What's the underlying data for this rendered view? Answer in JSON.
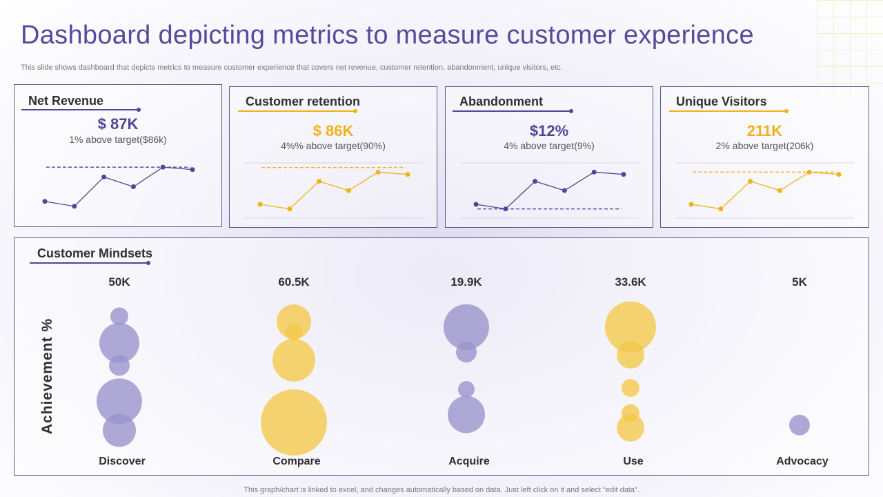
{
  "page": {
    "title": "Dashboard depicting metrics to measure customer experience",
    "subtitle": "This slide shows dashboard that depicts metrics to measure customer experience that covers net revenue, customer retention, abandonment, unique visitors, etc.",
    "footer": "This graph/chart is linked to excel,  and changes automatically based on data. Just left click on it and select “edit data”."
  },
  "colors": {
    "purple": "#4f4796",
    "gold": "#e8a916",
    "bubble_purple": "#9b94cc",
    "bubble_gold": "#f2c94c",
    "ink": "#2f2f2f"
  },
  "kpis": [
    {
      "title": "Net Revenue",
      "value": "$ 87K",
      "sub": "1% above target($86k)",
      "accent": "#4f4796"
    },
    {
      "title": "Customer retention",
      "value": "$ 86K",
      "sub": "4%% above target(90%)",
      "accent": "#f0b11b"
    },
    {
      "title": "Abandonment",
      "value": "$12%",
      "sub": "4% above target(9%)",
      "accent": "#4f4796"
    },
    {
      "title": "Unique Visitors",
      "value": "211K",
      "sub": "2% above target(206k)",
      "accent": "#f0b11b"
    }
  ],
  "mindsets": {
    "title": "Customer Mindsets",
    "axis_label": "Achievement %"
  },
  "chart_data": [
    {
      "type": "line",
      "title": "Net Revenue",
      "series": [
        {
          "values": [
            3,
            2,
            8,
            6,
            10,
            9.5
          ]
        }
      ],
      "target": 10,
      "ylim": [
        0,
        12
      ]
    },
    {
      "type": "line",
      "title": "Customer retention",
      "series": [
        {
          "values": [
            3,
            2,
            8,
            6,
            10,
            9.5
          ]
        }
      ],
      "target": 11,
      "ylim": [
        0,
        12
      ]
    },
    {
      "type": "line",
      "title": "Abandonment",
      "series": [
        {
          "values": [
            3,
            2,
            8,
            6,
            10,
            9.5
          ]
        }
      ],
      "target": 2,
      "ylim": [
        0,
        12
      ]
    },
    {
      "type": "line",
      "title": "Unique Visitors",
      "series": [
        {
          "values": [
            3,
            2,
            8,
            6,
            10,
            9.5
          ]
        }
      ],
      "target": 10,
      "ylim": [
        0,
        12
      ]
    },
    {
      "type": "scatter",
      "title": "Customer Mindsets",
      "ylabel": "Achievement %",
      "categories": [
        {
          "label": "Discover",
          "total": "50K",
          "color": "#9b94cc",
          "bubbles": [
            {
              "y": 92,
              "size": 13
            },
            {
              "y": 72,
              "size": 29
            },
            {
              "y": 55,
              "size": 15
            },
            {
              "y": 28,
              "size": 33
            },
            {
              "y": 6,
              "size": 24
            }
          ]
        },
        {
          "label": "Compare",
          "total": "60.5K",
          "color": "#f2c94c",
          "bubbles": [
            {
              "y": 88,
              "size": 25
            },
            {
              "y": 80,
              "size": 12
            },
            {
              "y": 59,
              "size": 31
            },
            {
              "y": 12,
              "size": 48
            }
          ]
        },
        {
          "label": "Acquire",
          "total": "19.9K",
          "color": "#9b94cc",
          "bubbles": [
            {
              "y": 84,
              "size": 33
            },
            {
              "y": 65,
              "size": 15
            },
            {
              "y": 37,
              "size": 12
            },
            {
              "y": 18,
              "size": 27
            }
          ]
        },
        {
          "label": "Use",
          "total": "33.6K",
          "color": "#f2c94c",
          "bubbles": [
            {
              "y": 84,
              "size": 37
            },
            {
              "y": 63,
              "size": 20
            },
            {
              "y": 38,
              "size": 13
            },
            {
              "y": 19,
              "size": 13
            },
            {
              "y": 8,
              "size": 20
            }
          ]
        },
        {
          "label": "Advocacy",
          "total": "5K",
          "color": "#9b94cc",
          "bubbles": [
            {
              "y": 10,
              "size": 15
            }
          ]
        }
      ],
      "ylim": [
        0,
        100
      ]
    }
  ]
}
